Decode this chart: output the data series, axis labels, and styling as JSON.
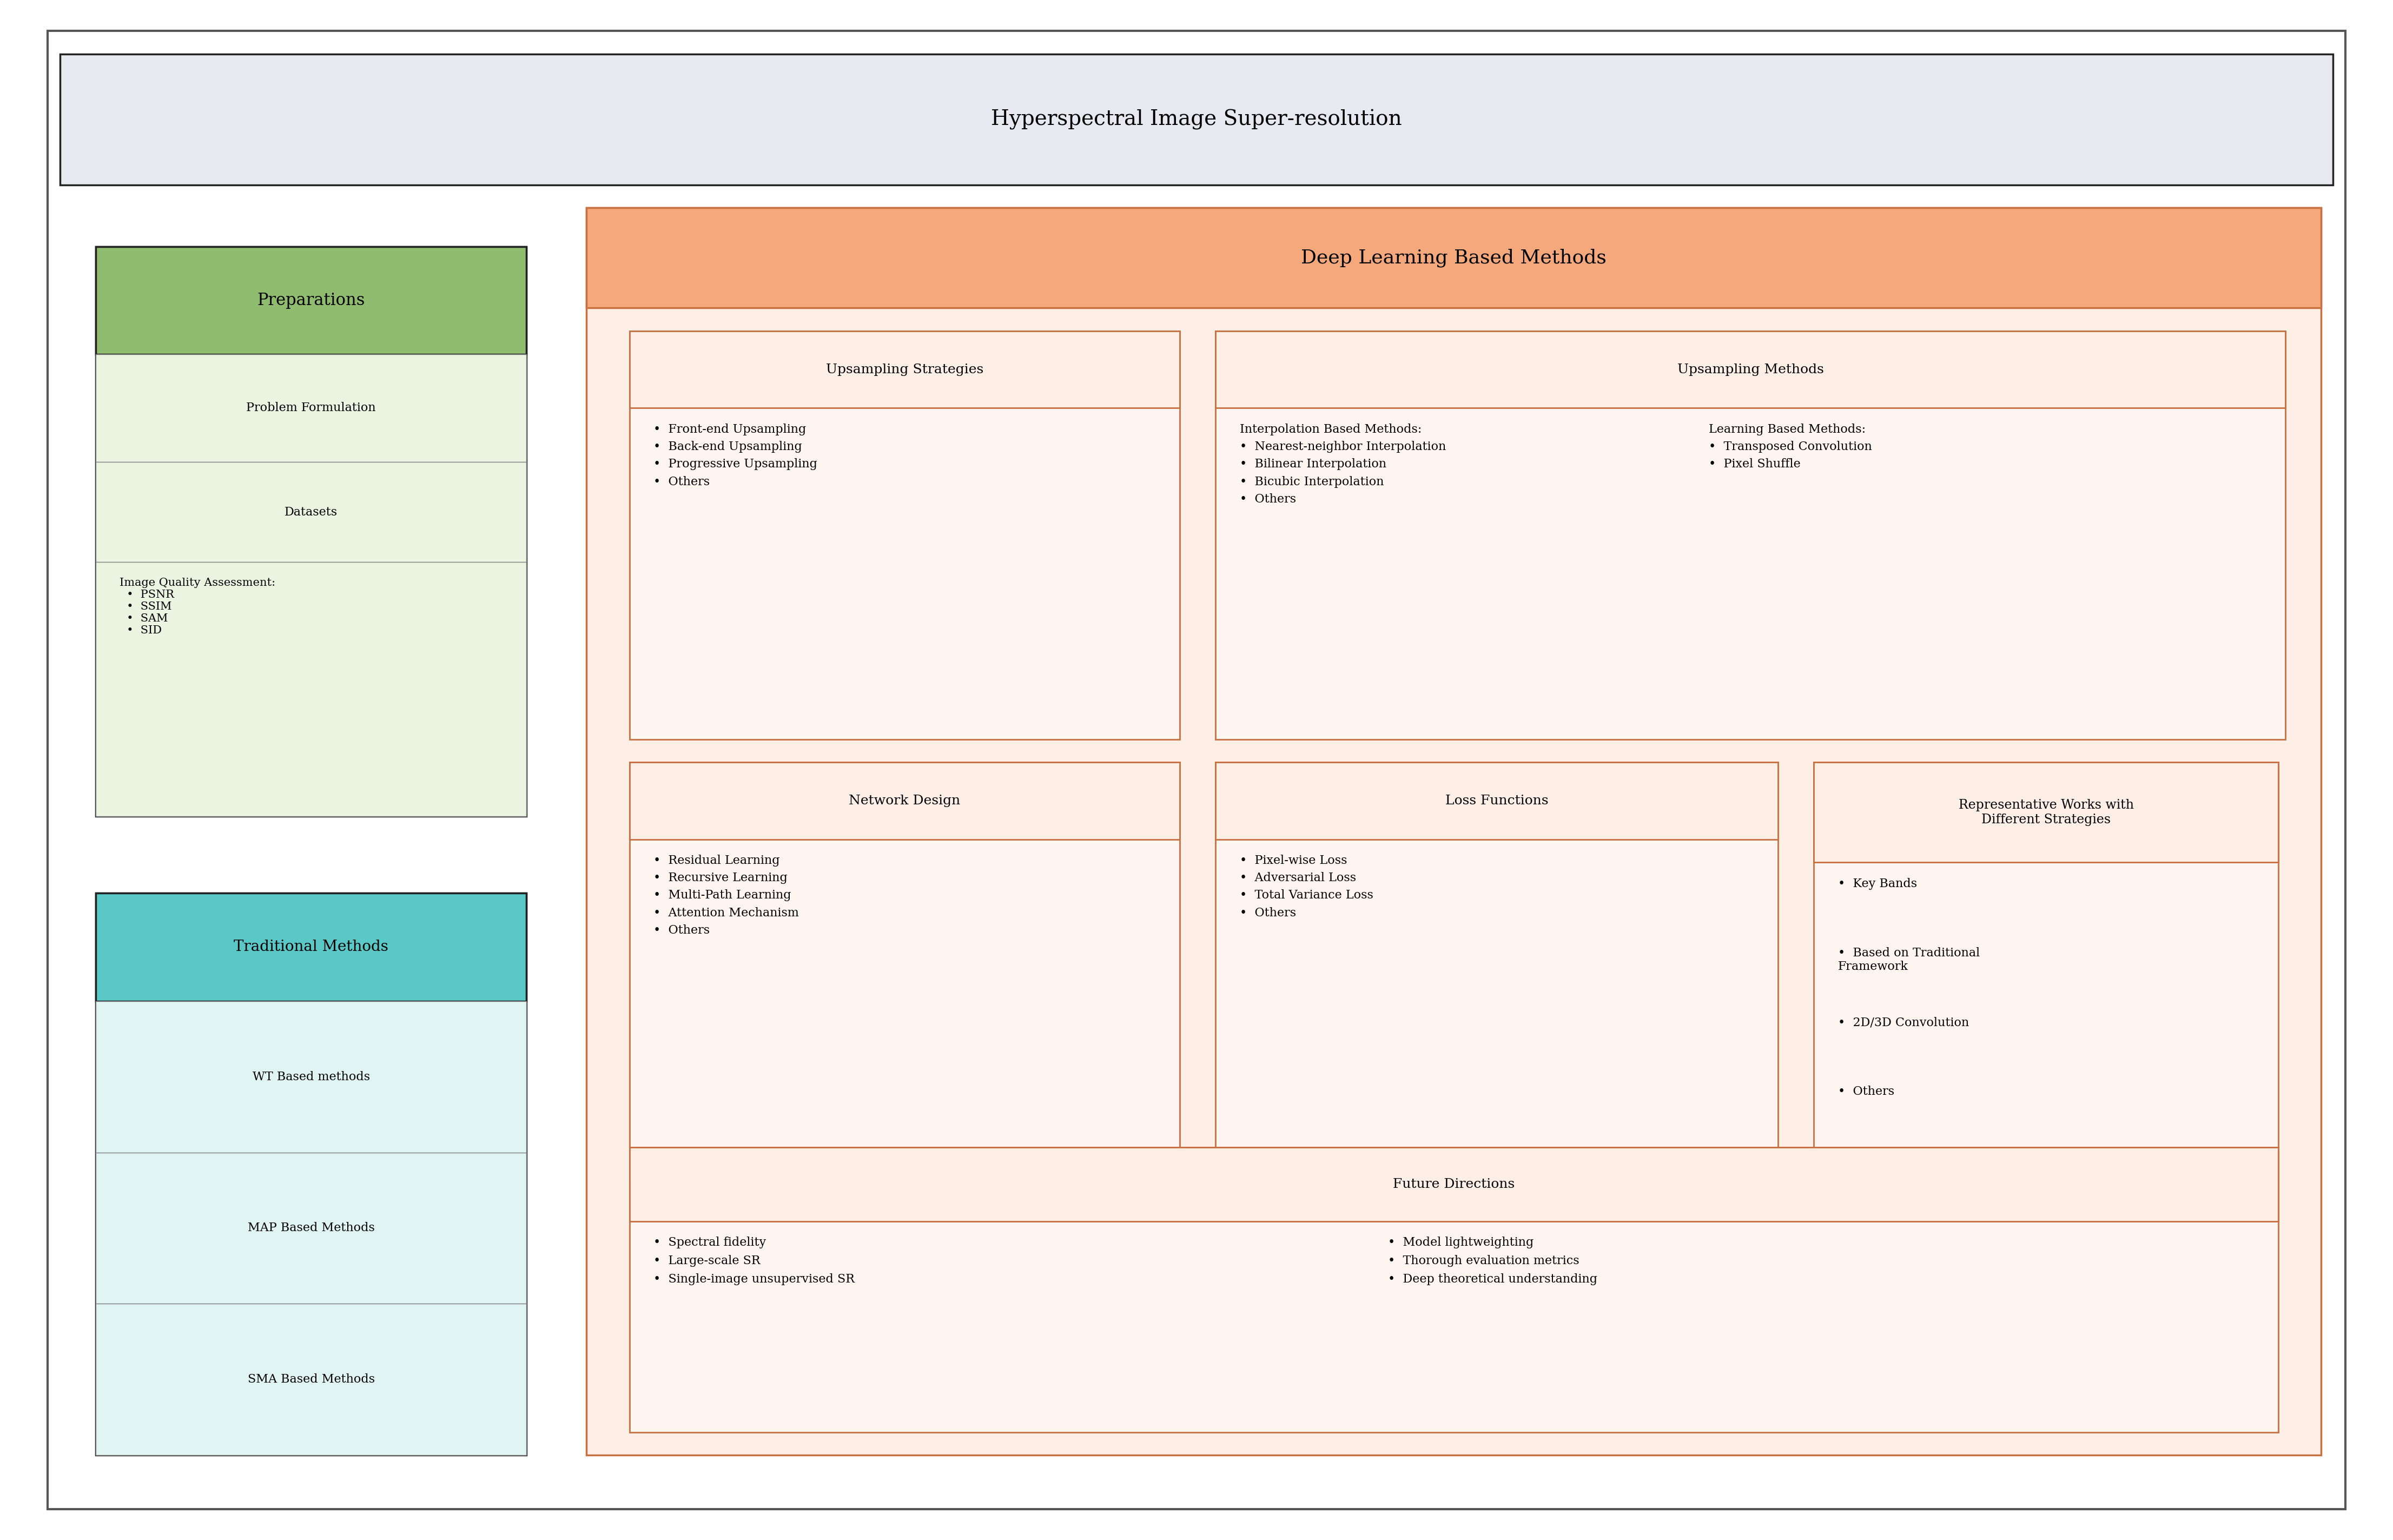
{
  "title": "Hyperspectral Image Super-resolution",
  "title_bg": "#e8e8f0",
  "outer_bg": "#ffffff",
  "outer_border": "#222222",
  "prep_header": "Preparations",
  "prep_header_bg": "#8fbc6f",
  "prep_body_bg": "#eaf4e0",
  "prep_items": [
    "Problem Formulation",
    "Datasets",
    "Image Quality Assessment:\n  •  PSNR\n  •  SSIM\n  •  SAM\n  •  SID"
  ],
  "trad_header": "Traditional Methods",
  "trad_header_bg": "#5bc8c8",
  "trad_body_bg": "#e0f4f4",
  "trad_items": [
    "WT Based methods",
    "MAP Based Methods",
    "SMA Based Methods"
  ],
  "dl_header": "Deep Learning Based Methods",
  "dl_header_bg": "#f4a87c",
  "dl_body_bg": "#fdeee6",
  "dl_border": "#c87040",
  "ups_strat_title": "Upsampling Strategies",
  "ups_strat_bg": "#fdeee6",
  "ups_strat_border": "#c87040",
  "ups_strat_items": [
    "Front-end Upsampling",
    "Back-end Upsampling",
    "Progressive Upsampling",
    "Others"
  ],
  "ups_meth_title": "Upsampling Methods",
  "ups_meth_bg": "#fdeee6",
  "ups_meth_border": "#c87040",
  "interp_title": "Interpolation Based Methods:",
  "interp_items": [
    "Nearest-neighbor Interpolation",
    "Bilinear Interpolation",
    "Bicubic Interpolation",
    "Others"
  ],
  "learn_title": "Learning Based Methods:",
  "learn_items": [
    "Transposed Convolution",
    "Pixel Shuffle"
  ],
  "net_title": "Network Design",
  "net_bg": "#fdeee6",
  "net_border": "#c87040",
  "net_items": [
    "Residual Learning",
    "Recursive Learning",
    "Multi-Path Learning",
    "Attention Mechanism",
    "Others"
  ],
  "loss_title": "Loss Functions",
  "loss_bg": "#fdeee6",
  "loss_border": "#c87040",
  "loss_items": [
    "Pixel-wise Loss",
    "Adversarial Loss",
    "Total Variance Loss",
    "Others"
  ],
  "rep_title": "Representative Works with\nDifferent Strategies",
  "rep_bg": "#fdeee6",
  "rep_border": "#c87040",
  "rep_items": [
    "Key Bands",
    "Based on Traditional\nFramework",
    "2D/3D Convolution",
    "Others"
  ],
  "future_title": "Future Directions",
  "future_bg": "#fdeee6",
  "future_border": "#c87040",
  "future_left_items": [
    "Spectral fidelity",
    "Large-scale SR",
    "Single-image unsupervised SR"
  ],
  "future_right_items": [
    "Model lightweighting",
    "Thorough evaluation metrics",
    "Deep theoretical understanding"
  ]
}
